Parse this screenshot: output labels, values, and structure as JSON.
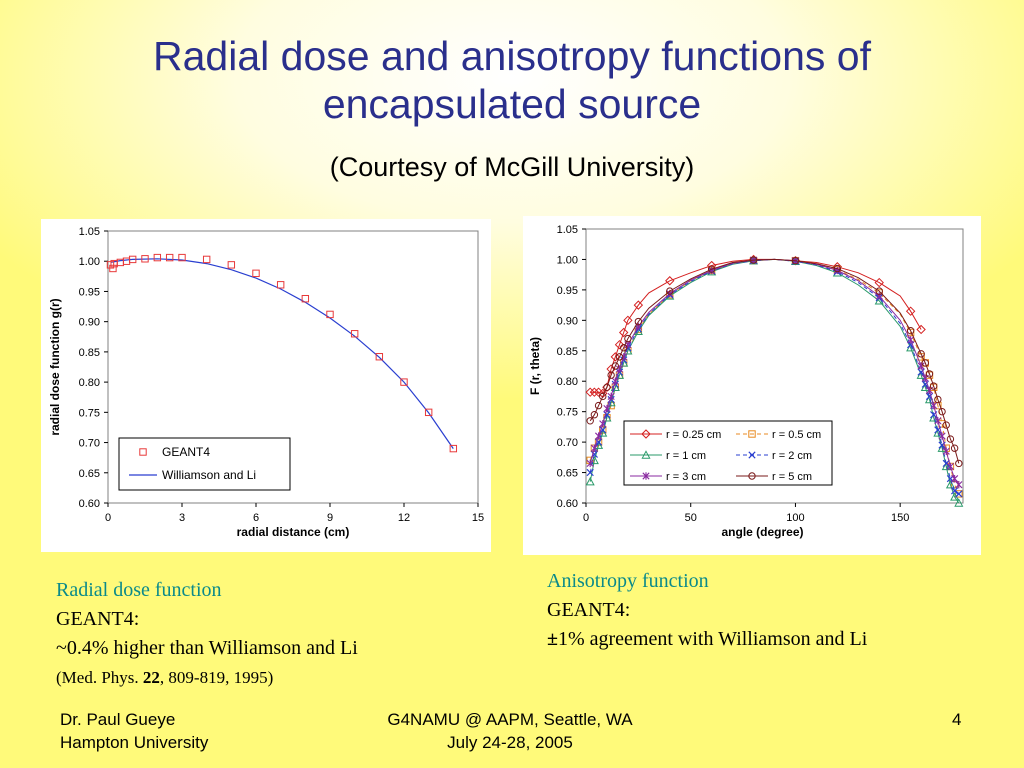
{
  "slide": {
    "title_line1": "Radial dose and anisotropy functions of",
    "title_line2": "encapsulated source",
    "subtitle": "(Courtesy of McGill University)"
  },
  "captions": {
    "left": {
      "heading": "Radial dose function",
      "line1": "GEANT4:",
      "line2": "~0.4% higher than Williamson and Li",
      "ref_prefix": "(Med. Phys. ",
      "ref_volume": "22",
      "ref_suffix": ", 809-819, 1995)"
    },
    "right": {
      "heading": "Anisotropy function",
      "line1": "GEANT4:",
      "line2_symbol": "±",
      "line2": "1% agreement with Williamson and Li"
    }
  },
  "footer": {
    "author": "Dr. Paul Gueye",
    "affiliation": "Hampton University",
    "event": "G4NAMU @ AAPM, Seattle, WA",
    "dates": "July 24-28, 2005",
    "page_number": "4"
  },
  "colors": {
    "title": "#2a2f8c",
    "caption_heading": "#0b8a8a",
    "geant4_marker": "#e8393a",
    "williamson_line": "#2a3fd0"
  },
  "chart_data": [
    {
      "type": "scatter",
      "xlabel": "radial distance (cm)",
      "ylabel": "radial dose function g(r)",
      "xlim": [
        0,
        15
      ],
      "ylim": [
        0.6,
        1.05
      ],
      "xticks": [
        "0",
        "3",
        "6",
        "9",
        "12",
        "15"
      ],
      "yticks": [
        "0.60",
        "0.65",
        "0.70",
        "0.75",
        "0.80",
        "0.85",
        "0.90",
        "0.95",
        "1.00",
        "1.05"
      ],
      "legend_position": "bottom-left",
      "series": [
        {
          "name": "GEANT4",
          "style": "square-markers",
          "color": "#e8393a",
          "x": [
            0.1,
            0.2,
            0.25,
            0.5,
            0.75,
            1,
            1.5,
            2,
            2.5,
            3,
            4,
            5,
            6,
            7,
            8,
            9,
            10,
            11,
            12,
            13,
            14
          ],
          "y": [
            0.994,
            0.988,
            0.996,
            0.998,
            1.0,
            1.003,
            1.004,
            1.006,
            1.006,
            1.006,
            1.003,
            0.994,
            0.98,
            0.961,
            0.938,
            0.912,
            0.88,
            0.842,
            0.8,
            0.75,
            0.69
          ]
        },
        {
          "name": "Williamson and Li",
          "style": "line",
          "color": "#2a3fd0",
          "x": [
            0.1,
            0.5,
            1,
            2,
            3,
            4,
            5,
            6,
            7,
            8,
            9,
            10,
            11,
            12,
            13,
            14
          ],
          "y": [
            0.998,
            1.001,
            1.003,
            1.004,
            1.002,
            0.996,
            0.986,
            0.972,
            0.954,
            0.932,
            0.906,
            0.876,
            0.841,
            0.8,
            0.749,
            0.69
          ]
        }
      ]
    },
    {
      "type": "line",
      "xlabel": "angle (degree)",
      "ylabel": "F (r, theta)",
      "xlim": [
        0,
        180
      ],
      "ylim": [
        0.6,
        1.05
      ],
      "xticks": [
        "0",
        "50",
        "100",
        "150"
      ],
      "yticks": [
        "0.60",
        "0.65",
        "0.70",
        "0.75",
        "0.80",
        "0.85",
        "0.90",
        "0.95",
        "1.00",
        "1.05"
      ],
      "legend_position": "center-right",
      "x": [
        2,
        4,
        6,
        8,
        10,
        12,
        14,
        16,
        18,
        20,
        25,
        30,
        40,
        50,
        60,
        70,
        80,
        90,
        100,
        110,
        120,
        130,
        140,
        150,
        155,
        160,
        162,
        164,
        166,
        168,
        170,
        172,
        174,
        176,
        178
      ],
      "series": [
        {
          "name": "r = 0.25 cm",
          "marker": "diamond",
          "color": "#d42020",
          "y": [
            0.782,
            0.782,
            0.782,
            0.78,
            0.79,
            0.82,
            0.84,
            0.86,
            0.88,
            0.9,
            0.925,
            0.945,
            0.965,
            0.978,
            0.99,
            0.997,
            1.0,
            1.0,
            0.998,
            0.995,
            0.988,
            0.978,
            0.962,
            0.94,
            0.915,
            0.885,
            null,
            null,
            null,
            null,
            null,
            null,
            null,
            null,
            null
          ]
        },
        {
          "name": "r = 0.5 cm",
          "marker": "square",
          "color": "#e88a20",
          "y": [
            0.67,
            0.69,
            0.7,
            0.72,
            0.74,
            0.76,
            0.79,
            0.81,
            0.83,
            0.85,
            0.885,
            0.91,
            0.942,
            0.965,
            0.982,
            0.993,
            0.998,
            1.0,
            0.998,
            0.993,
            0.983,
            0.967,
            0.945,
            0.91,
            0.88,
            0.84,
            0.83,
            0.81,
            0.79,
            0.76,
            0.73,
            0.69,
            0.66,
            0.63,
            0.615
          ]
        },
        {
          "name": "r = 1 cm",
          "marker": "triangle",
          "color": "#2a9a6a",
          "y": [
            0.635,
            0.67,
            0.695,
            0.715,
            0.74,
            0.765,
            0.79,
            0.81,
            0.83,
            0.85,
            0.882,
            0.908,
            0.94,
            0.962,
            0.98,
            0.992,
            0.998,
            1.0,
            0.997,
            0.99,
            0.978,
            0.958,
            0.932,
            0.89,
            0.855,
            0.81,
            0.79,
            0.77,
            0.74,
            0.715,
            0.69,
            0.66,
            0.63,
            0.61,
            0.6
          ]
        },
        {
          "name": "r = 2 cm",
          "marker": "x",
          "color": "#2a3fd0",
          "y": [
            0.65,
            0.68,
            0.7,
            0.72,
            0.745,
            0.77,
            0.795,
            0.815,
            0.835,
            0.855,
            0.886,
            0.91,
            0.942,
            0.964,
            0.981,
            0.993,
            0.998,
            1.0,
            0.997,
            0.991,
            0.98,
            0.962,
            0.937,
            0.895,
            0.86,
            0.815,
            0.795,
            0.775,
            0.745,
            0.72,
            0.695,
            0.665,
            0.64,
            0.62,
            0.615
          ]
        },
        {
          "name": "r = 3 cm",
          "marker": "star",
          "color": "#8a2aa0",
          "y": [
            0.665,
            0.69,
            0.71,
            0.73,
            0.755,
            0.775,
            0.8,
            0.82,
            0.84,
            0.86,
            0.89,
            0.913,
            0.944,
            0.966,
            0.982,
            0.994,
            0.999,
            1.0,
            0.998,
            0.992,
            0.982,
            0.965,
            0.94,
            0.9,
            0.868,
            0.825,
            0.805,
            0.785,
            0.76,
            0.735,
            0.71,
            0.685,
            0.66,
            0.64,
            0.63
          ]
        },
        {
          "name": "r = 5 cm",
          "marker": "circle",
          "color": "#7a1a1a",
          "y": [
            0.735,
            0.745,
            0.76,
            0.775,
            0.79,
            0.81,
            0.825,
            0.84,
            0.855,
            0.87,
            0.898,
            0.92,
            0.948,
            0.968,
            0.984,
            0.995,
            0.999,
            1.0,
            0.998,
            0.993,
            0.985,
            0.97,
            0.948,
            0.912,
            0.883,
            0.845,
            0.83,
            0.812,
            0.792,
            0.77,
            0.75,
            0.728,
            0.705,
            0.69,
            0.665
          ]
        }
      ]
    }
  ]
}
